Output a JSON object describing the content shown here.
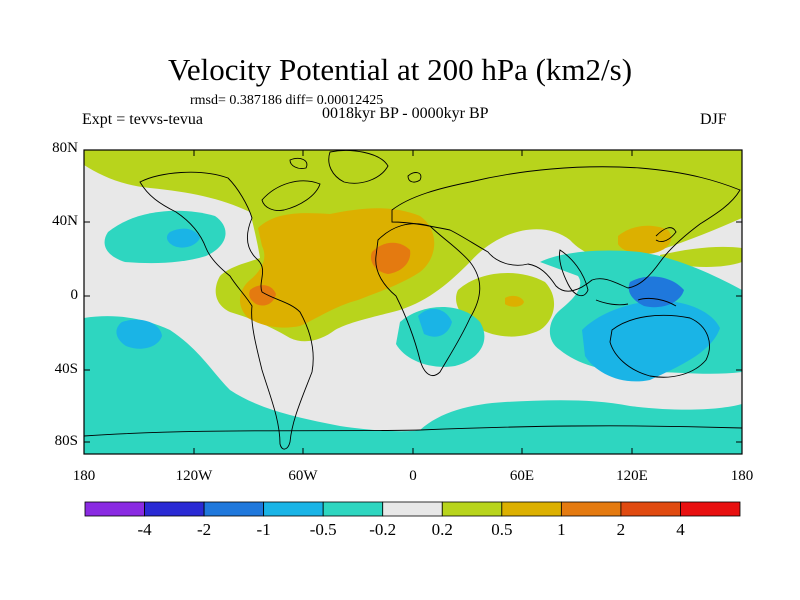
{
  "title": "Velocity Potential at 200 hPa (km2/s)",
  "stats": "rmsd= 0.387186 diff= 0.00012425",
  "experiment": "Expt = tevvs-tevua",
  "period": "0018kyr BP - 0000kyr BP",
  "season": "DJF",
  "lat_labels": [
    "80N",
    "40N",
    "0",
    "40S",
    "80S"
  ],
  "lon_labels": [
    "180",
    "120W",
    "60W",
    "0",
    "60E",
    "120E",
    "180"
  ],
  "colorbar": {
    "labels": [
      "-4",
      "-2",
      "-1",
      "-0.5",
      "-0.2",
      "0.2",
      "0.5",
      "1",
      "2",
      "4"
    ],
    "colors": [
      "#8a2be2",
      "#2a2ad4",
      "#1f78dc",
      "#1ab4e6",
      "#2ed6c0",
      "#e8e8e8",
      "#b8d41c",
      "#dcb000",
      "#e47a10",
      "#e04a10",
      "#e81010"
    ]
  },
  "palette": {
    "ocean_bg": "#e8e8e8",
    "pos_02_05": "#b8d41c",
    "pos_05_1": "#dcb000",
    "pos_1_2": "#e47a10",
    "neg_02_05": "#2ed6c0",
    "neg_05_1": "#1ab4e6",
    "neg_1_2": "#1f78dc"
  }
}
